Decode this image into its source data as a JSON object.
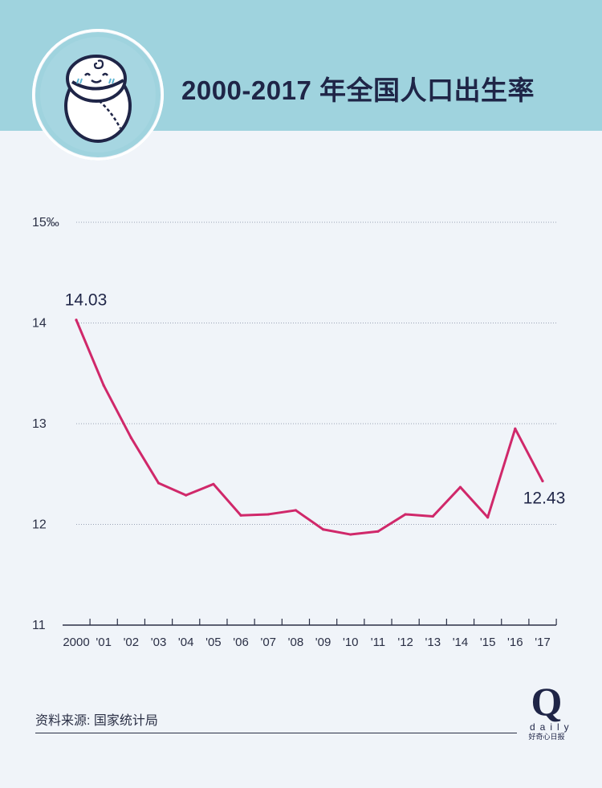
{
  "header": {
    "title": "2000-2017 年全国人口出生率"
  },
  "icons": {
    "badge": "swaddled-baby-icon"
  },
  "colors": {
    "header_band": "#9fd3de",
    "background": "#f0f4f9",
    "line": "#d0286a",
    "text": "#1f2547"
  },
  "chart_data": {
    "type": "line",
    "title": "2000-2017 年全国人口出生率",
    "x": [
      "2000",
      "'01",
      "'02",
      "'03",
      "'04",
      "'05",
      "'06",
      "'07",
      "'08",
      "'09",
      "'10",
      "'11",
      "'12",
      "'13",
      "'14",
      "'15",
      "'16",
      "'17"
    ],
    "series": [
      {
        "values": [
          14.03,
          13.38,
          12.86,
          12.41,
          12.29,
          12.4,
          12.09,
          12.1,
          12.14,
          11.95,
          11.9,
          11.93,
          12.1,
          12.08,
          12.37,
          12.07,
          12.95,
          12.43
        ]
      }
    ],
    "ylim": [
      11,
      15
    ],
    "yticks": [
      {
        "value": 15,
        "label": "15‰"
      },
      {
        "value": 14,
        "label": "14"
      },
      {
        "value": 13,
        "label": "13"
      },
      {
        "value": 12,
        "label": "12"
      },
      {
        "value": 11,
        "label": "11"
      }
    ],
    "annotations": [
      {
        "index": 0,
        "label": "14.03"
      },
      {
        "index": 17,
        "label": "12.43"
      }
    ],
    "grid": "dotted horizontal",
    "xlabel": "",
    "ylabel": ""
  },
  "footer": {
    "source": "资料来源: 国家统计局",
    "logo_letter": "Q",
    "logo_word": "daily",
    "logo_sub": "好奇心日报"
  }
}
